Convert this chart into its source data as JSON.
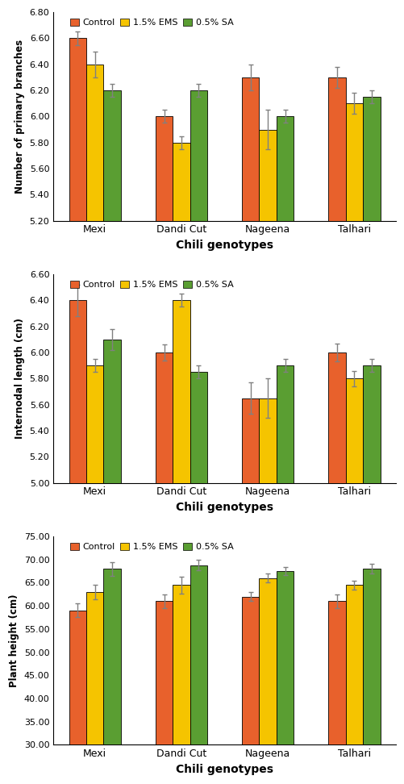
{
  "genotypes": [
    "Mexi",
    "Dandi Cut",
    "Nageena",
    "Talhari"
  ],
  "legend_labels": [
    "Control",
    "1.5% EMS",
    "0.5% SA"
  ],
  "colors": [
    "#E8612C",
    "#F5C400",
    "#5A9E32"
  ],
  "bar_width": 0.2,
  "plot1": {
    "ylabel": "Number of primary branches",
    "xlabel": "Chili genotypes",
    "ylim": [
      5.2,
      6.8
    ],
    "yticks": [
      5.2,
      5.4,
      5.6,
      5.8,
      6.0,
      6.2,
      6.4,
      6.6,
      6.8
    ],
    "values": [
      [
        6.6,
        6.0,
        6.3,
        6.3
      ],
      [
        6.4,
        5.8,
        5.9,
        6.1
      ],
      [
        6.2,
        6.2,
        6.0,
        6.15
      ]
    ],
    "errors": [
      [
        0.05,
        0.05,
        0.1,
        0.08
      ],
      [
        0.1,
        0.05,
        0.15,
        0.08
      ],
      [
        0.05,
        0.05,
        0.05,
        0.05
      ]
    ]
  },
  "plot2": {
    "ylabel": "Internodal length (cm)",
    "xlabel": "Chili genotypes",
    "ylim": [
      5.0,
      6.6
    ],
    "yticks": [
      5.0,
      5.2,
      5.4,
      5.6,
      5.8,
      6.0,
      6.2,
      6.4,
      6.6
    ],
    "values": [
      [
        6.4,
        6.0,
        5.65,
        6.0
      ],
      [
        5.9,
        6.4,
        5.65,
        5.8
      ],
      [
        6.1,
        5.85,
        5.9,
        5.9
      ]
    ],
    "errors": [
      [
        0.12,
        0.06,
        0.12,
        0.07
      ],
      [
        0.05,
        0.05,
        0.15,
        0.06
      ],
      [
        0.08,
        0.05,
        0.05,
        0.05
      ]
    ]
  },
  "plot3": {
    "ylabel": "Plant height (cm)",
    "xlabel": "Chili genotypes",
    "ylim": [
      30.0,
      75.0
    ],
    "yticks": [
      30.0,
      35.0,
      40.0,
      45.0,
      50.0,
      55.0,
      60.0,
      65.0,
      70.0,
      75.0
    ],
    "values": [
      [
        59.0,
        61.0,
        62.0,
        61.0
      ],
      [
        63.0,
        64.5,
        66.0,
        64.5
      ],
      [
        68.0,
        68.8,
        67.5,
        68.0
      ]
    ],
    "errors": [
      [
        1.5,
        1.5,
        1.0,
        1.5
      ],
      [
        1.5,
        1.8,
        1.0,
        1.0
      ],
      [
        1.5,
        1.2,
        0.8,
        1.0
      ]
    ]
  }
}
